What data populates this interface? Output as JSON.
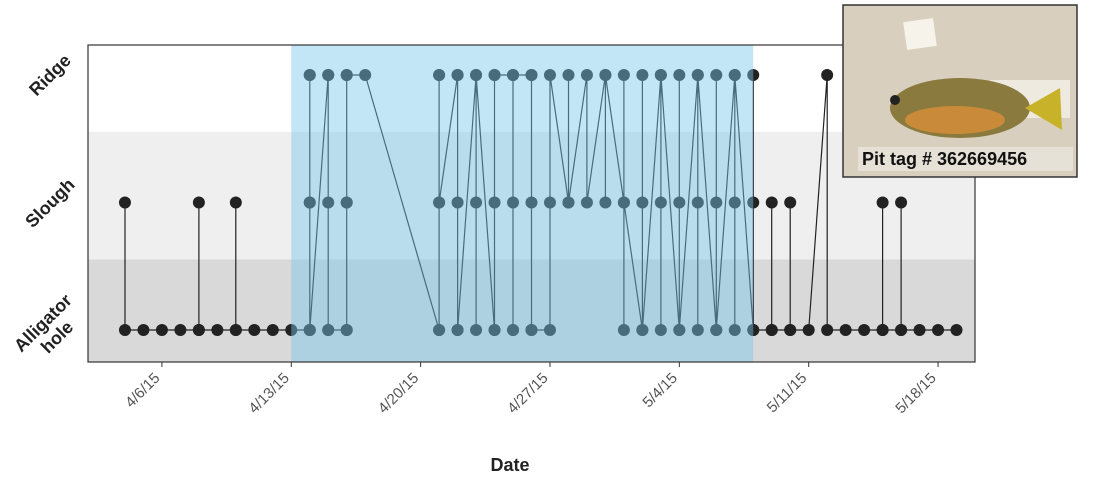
{
  "chart_data": {
    "type": "step-dot",
    "xlabel": "Date",
    "annotation": "Pit tag # 362669456",
    "categories": [
      "Alligator hole",
      "Slough",
      "Ridge"
    ],
    "band_colors": [
      "#d9d9d9",
      "#efefef",
      "#ffffff"
    ],
    "highlight": {
      "from": "4/13/15",
      "to": "5/8/15",
      "color": "rgba(120,200,235,0.45)"
    },
    "color": "#222222",
    "xlim": [
      "4/2/15",
      "5/20/15"
    ],
    "xticks": [
      "4/6/15",
      "4/13/15",
      "4/20/15",
      "4/27/15",
      "5/4/15",
      "5/11/15",
      "5/18/15"
    ],
    "x": [
      "4/4/15",
      "4/4/15",
      "4/5/15",
      "4/6/15",
      "4/7/15",
      "4/8/15",
      "4/8/15",
      "4/8/15",
      "4/9/15",
      "4/10/15",
      "4/10/15",
      "4/10/15",
      "4/11/15",
      "4/12/15",
      "4/13/15",
      "4/14/15",
      "4/14/15",
      "4/14/15",
      "4/14/15",
      "4/14/15",
      "4/14/15",
      "4/14/15",
      "4/15/15",
      "4/15/15",
      "4/15/15",
      "4/15/15",
      "4/15/15",
      "4/16/15",
      "4/16/15",
      "4/16/15",
      "4/16/15",
      "4/16/15",
      "4/16/15",
      "4/17/15",
      "4/21/15",
      "4/21/15",
      "4/21/15",
      "4/21/15",
      "4/21/15",
      "4/21/15",
      "4/22/15",
      "4/22/15",
      "4/22/15",
      "4/22/15",
      "4/22/15",
      "4/23/15",
      "4/23/15",
      "4/23/15",
      "4/23/15",
      "4/24/15",
      "4/24/15",
      "4/24/15",
      "4/24/15",
      "4/24/15",
      "4/25/15",
      "4/25/15",
      "4/25/15",
      "4/25/15",
      "4/25/15",
      "4/26/15",
      "4/26/15",
      "4/26/15",
      "4/26/15",
      "4/26/15",
      "4/27/15",
      "4/27/15",
      "4/27/15",
      "4/28/15",
      "4/28/15",
      "4/28/15",
      "4/29/15",
      "4/29/15",
      "4/30/15",
      "4/30/15",
      "4/30/15",
      "5/1/15",
      "5/1/15",
      "5/1/15",
      "5/1/15",
      "5/2/15",
      "5/2/15",
      "5/2/15",
      "5/2/15",
      "5/3/15",
      "5/3/15",
      "5/3/15",
      "5/3/15",
      "5/4/15",
      "5/4/15",
      "5/4/15",
      "5/4/15",
      "5/5/15",
      "5/5/15",
      "5/5/15",
      "5/5/15",
      "5/6/15",
      "5/6/15",
      "5/6/15",
      "5/6/15",
      "5/7/15",
      "5/7/15",
      "5/7/15",
      "5/7/15",
      "5/8/15",
      "5/8/15",
      "5/8/15",
      "5/8/15",
      "5/9/15",
      "5/9/15",
      "5/9/15",
      "5/10/15",
      "5/10/15",
      "5/10/15",
      "5/11/15",
      "5/12/15",
      "5/12/15",
      "5/13/15",
      "5/14/15",
      "5/15/15",
      "5/15/15",
      "5/15/15",
      "5/16/15",
      "5/16/15",
      "5/16/15",
      "5/17/15",
      "5/18/15",
      "5/19/15"
    ],
    "values": [
      "Slough",
      "Alligator hole",
      "Alligator hole",
      "Alligator hole",
      "Alligator hole",
      "Alligator hole",
      "Slough",
      "Alligator hole",
      "Alligator hole",
      "Alligator hole",
      "Slough",
      "Alligator hole",
      "Alligator hole",
      "Alligator hole",
      "Alligator hole",
      "Alligator hole",
      "Slough",
      "Ridge",
      "Alligator hole",
      "Ridge",
      "Slough",
      "Alligator hole",
      "Ridge",
      "Alligator hole",
      "Slough",
      "Ridge",
      "Alligator hole",
      "Alligator hole",
      "Slough",
      "Ridge",
      "Slough",
      "Alligator hole",
      "Ridge",
      "Ridge",
      "Alligator hole",
      "Slough",
      "Ridge",
      "Alligator hole",
      "Ridge",
      "Slough",
      "Ridge",
      "Alligator hole",
      "Slough",
      "Ridge",
      "Alligator hole",
      "Ridge",
      "Slough",
      "Alligator hole",
      "Ridge",
      "Alligator hole",
      "Ridge",
      "Slough",
      "Alligator hole",
      "Ridge",
      "Ridge",
      "Alligator hole",
      "Slough",
      "Alligator hole",
      "Ridge",
      "Ridge",
      "Slough",
      "Alligator hole",
      "Ridge",
      "Alligator hole",
      "Alligator hole",
      "Slough",
      "Ridge",
      "Slough",
      "Ridge",
      "Slough",
      "Ridge",
      "Slough",
      "Ridge",
      "Slough",
      "Ridge",
      "Slough",
      "Alligator hole",
      "Ridge",
      "Slough",
      "Alligator hole",
      "Ridge",
      "Slough",
      "Alligator hole",
      "Ridge",
      "Slough",
      "Alligator hole",
      "Ridge",
      "Alligator hole",
      "Slough",
      "Ridge",
      "Alligator hole",
      "Ridge",
      "Alligator hole",
      "Slough",
      "Ridge",
      "Alligator hole",
      "Slough",
      "Ridge",
      "Alligator hole",
      "Ridge",
      "Slough",
      "Alligator hole",
      "Ridge",
      "Alligator hole",
      "Slough",
      "Ridge",
      "Alligator hole",
      "Alligator hole",
      "Slough",
      "Alligator hole",
      "Alligator hole",
      "Slough",
      "Alligator hole",
      "Alligator hole",
      "Ridge",
      "Alligator hole",
      "Alligator hole",
      "Alligator hole",
      "Alligator hole",
      "Slough",
      "Alligator hole",
      "Alligator hole",
      "Slough",
      "Alligator hole",
      "Alligator hole",
      "Alligator hole",
      "Alligator hole"
    ]
  }
}
